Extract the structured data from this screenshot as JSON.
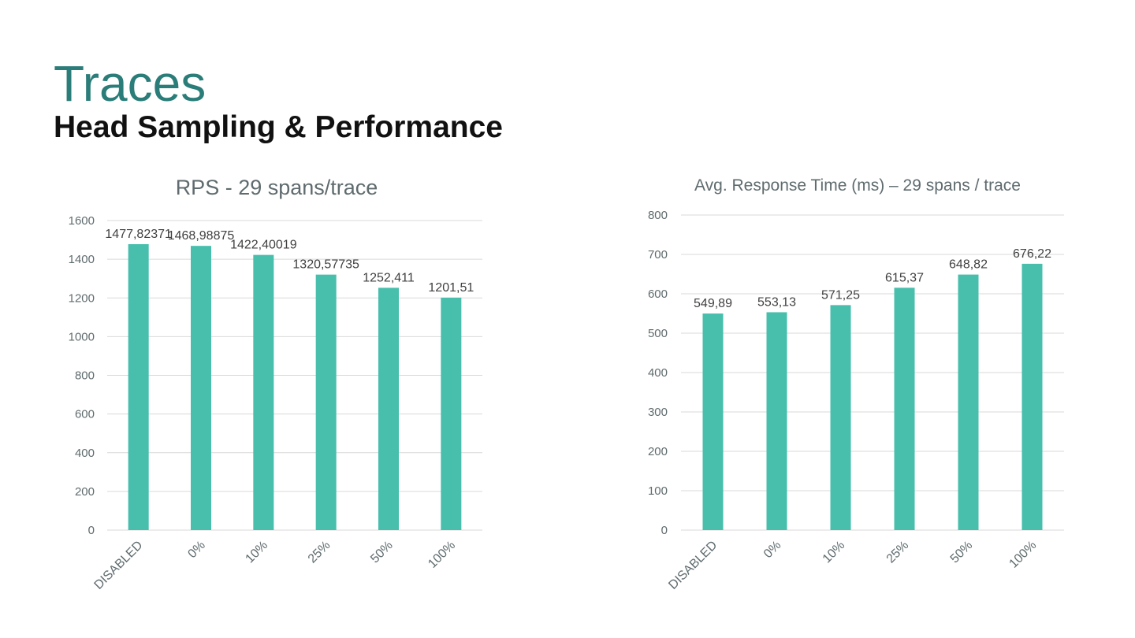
{
  "slide": {
    "title": "Traces",
    "subtitle": "Head Sampling & Performance"
  },
  "colors": {
    "bar": "#47bfac",
    "title": "#2a7d78",
    "grid": "#d9d9d9"
  },
  "chart_data": [
    {
      "id": "rps",
      "type": "bar",
      "title": "RPS - 29 spans/trace",
      "categories": [
        "DISABLED",
        "0%",
        "10%",
        "25%",
        "50%",
        "100%"
      ],
      "values": [
        1477.82371,
        1468.98875,
        1422.40019,
        1320.57735,
        1252.411,
        1201.51
      ],
      "data_labels": [
        "1477,82371",
        "1468,98875",
        "1422,40019",
        "1320,57735",
        "1252,411",
        "1201,51"
      ],
      "ylim": [
        0,
        1600
      ],
      "yticks": [
        0,
        200,
        400,
        600,
        800,
        1000,
        1200,
        1400,
        1600
      ],
      "xlabel": "",
      "ylabel": "",
      "grid": true,
      "legend": "none"
    },
    {
      "id": "rt",
      "type": "bar",
      "title": "Avg. Response Time (ms) – 29 spans / trace",
      "categories": [
        "DISABLED",
        "0%",
        "10%",
        "25%",
        "50%",
        "100%"
      ],
      "values": [
        549.89,
        553.13,
        571.25,
        615.37,
        648.82,
        676.22
      ],
      "data_labels": [
        "549,89",
        "553,13",
        "571,25",
        "615,37",
        "648,82",
        "676,22"
      ],
      "ylim": [
        0,
        800
      ],
      "yticks": [
        0,
        100,
        200,
        300,
        400,
        500,
        600,
        700,
        800
      ],
      "xlabel": "",
      "ylabel": "",
      "grid": true,
      "legend": "none"
    }
  ]
}
